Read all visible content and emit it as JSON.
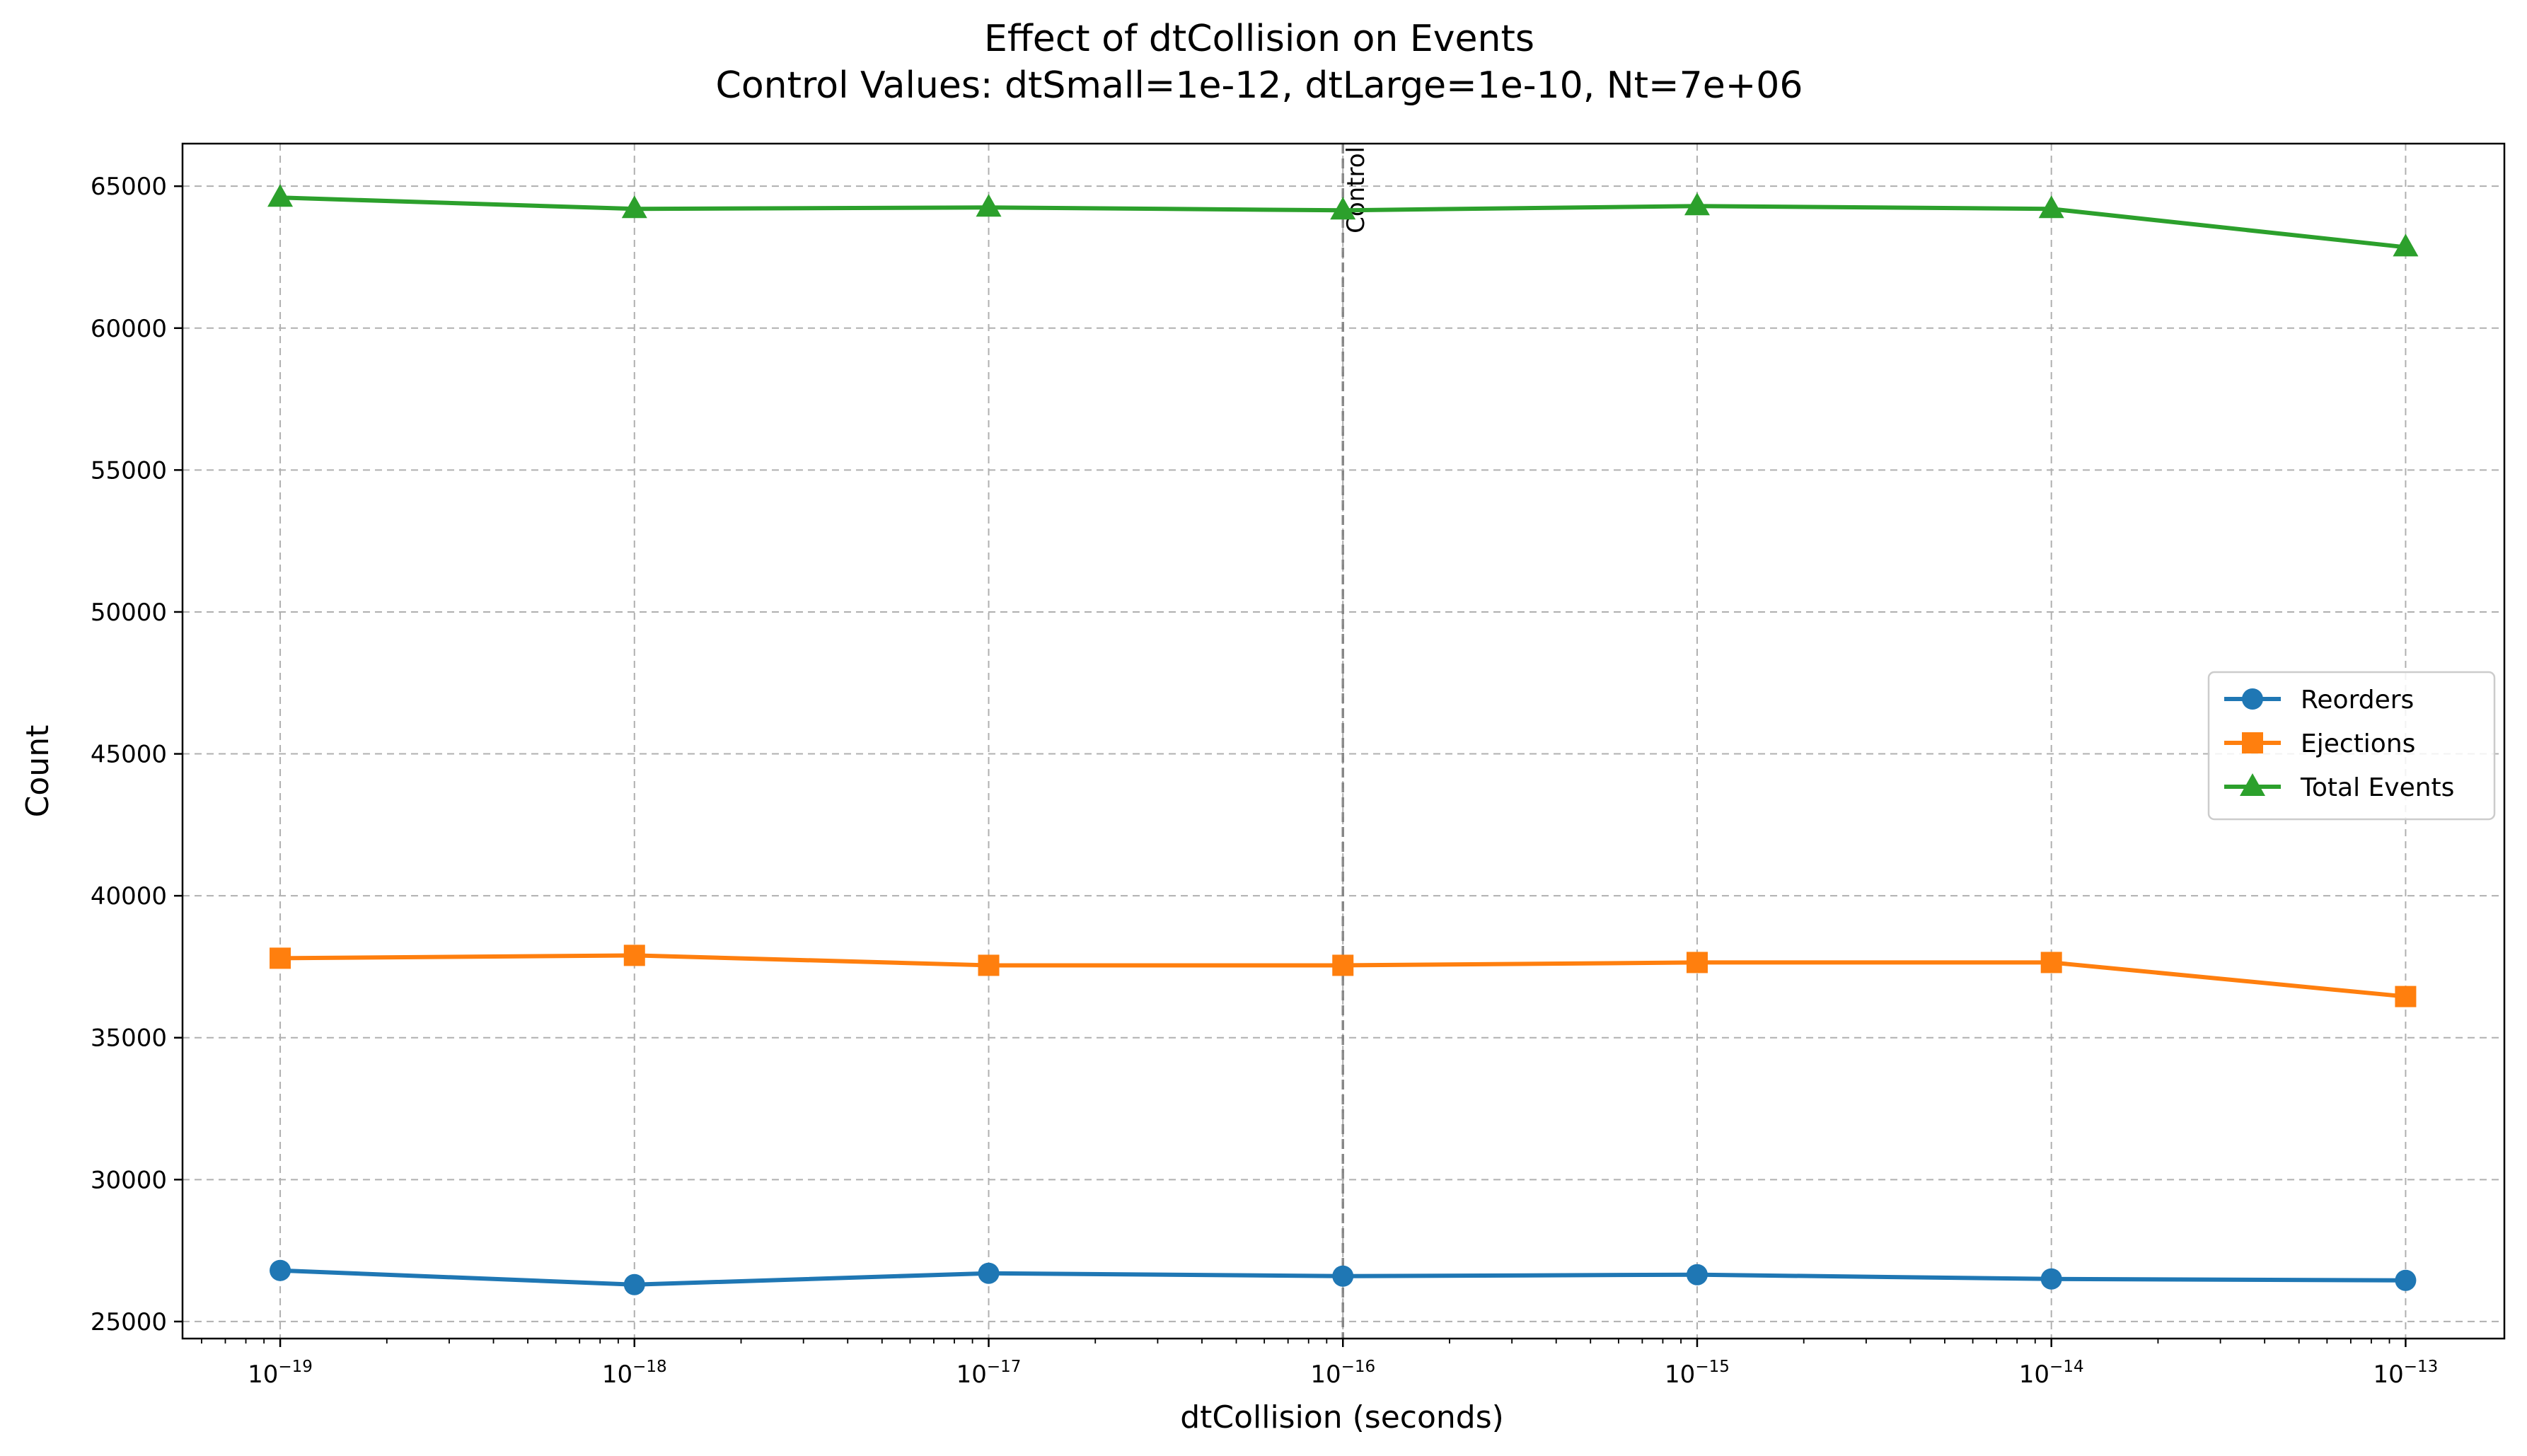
{
  "chart_data": {
    "type": "line",
    "title": "Effect of dtCollision on Events",
    "subtitle": "Control Values: dtSmall=1e-12, dtLarge=1e-10, Nt=7e+06",
    "xlabel": "dtCollision (seconds)",
    "ylabel": "Count",
    "xscale": "log",
    "x": [
      1e-19,
      1e-18,
      1e-17,
      1e-16,
      1e-15,
      1e-14,
      1e-13
    ],
    "x_tick_labels": [
      {
        "base": "10",
        "exp": "−19"
      },
      {
        "base": "10",
        "exp": "−18"
      },
      {
        "base": "10",
        "exp": "−17"
      },
      {
        "base": "10",
        "exp": "−16"
      },
      {
        "base": "10",
        "exp": "−15"
      },
      {
        "base": "10",
        "exp": "−14"
      },
      {
        "base": "10",
        "exp": "−13"
      }
    ],
    "xlim": [
      5.3e-20,
      1.9e-13
    ],
    "ylim": [
      24400,
      66500
    ],
    "y_ticks": [
      25000,
      30000,
      35000,
      40000,
      45000,
      50000,
      55000,
      60000,
      65000
    ],
    "y_tick_labels": [
      "25000",
      "30000",
      "35000",
      "40000",
      "45000",
      "50000",
      "55000",
      "60000",
      "65000"
    ],
    "grid": true,
    "legend_position": "center-right",
    "series": [
      {
        "name": "Reorders",
        "color": "#1f77b4",
        "marker": "circle",
        "values": [
          26800,
          26300,
          26700,
          26600,
          26650,
          26500,
          26450
        ]
      },
      {
        "name": "Ejections",
        "color": "#ff7f0e",
        "marker": "square",
        "values": [
          37800,
          37900,
          37550,
          37550,
          37650,
          37650,
          36450
        ]
      },
      {
        "name": "Total Events",
        "color": "#2ca02c",
        "marker": "triangle",
        "values": [
          64600,
          64200,
          64250,
          64150,
          64300,
          64200,
          62850
        ]
      }
    ],
    "annotations": [
      {
        "text": "Control",
        "x": 1e-16,
        "style": "vertical dashed line",
        "color": "#808080"
      }
    ]
  }
}
